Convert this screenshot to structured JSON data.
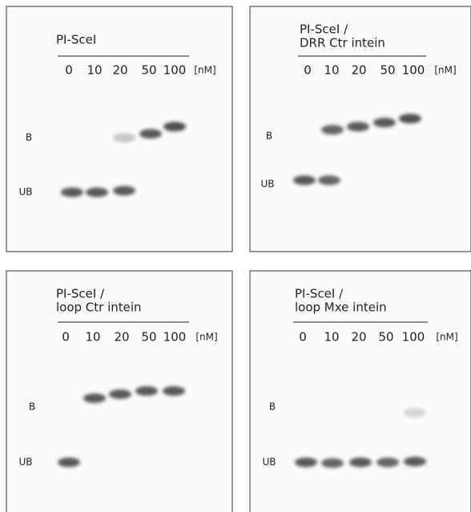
{
  "panels": [
    {
      "title": [
        "PI-SceI"
      ],
      "lanes": [
        0,
        10,
        20,
        50,
        100
      ],
      "unit": "[nM]",
      "band_labels": [
        "B",
        "UB"
      ]
    },
    {
      "title": [
        "PI-SceI /",
        "DRR Ctr intein"
      ],
      "lanes": [
        0,
        10,
        20,
        50,
        100
      ],
      "unit": "[nM]",
      "band_labels": [
        "B",
        "UB"
      ]
    },
    {
      "title": [
        "PI-SceI /",
        "loop Ctr intein"
      ],
      "lanes": [
        0,
        10,
        20,
        50,
        100
      ],
      "unit": "[nM]",
      "band_labels": [
        "B",
        "UB"
      ]
    },
    {
      "title": [
        "PI-SceI /",
        "loop Mxe intein"
      ],
      "lanes": [
        0,
        10,
        20,
        50,
        100
      ],
      "unit": "[nM]",
      "band_labels": [
        "B",
        "UB"
      ]
    }
  ]
}
